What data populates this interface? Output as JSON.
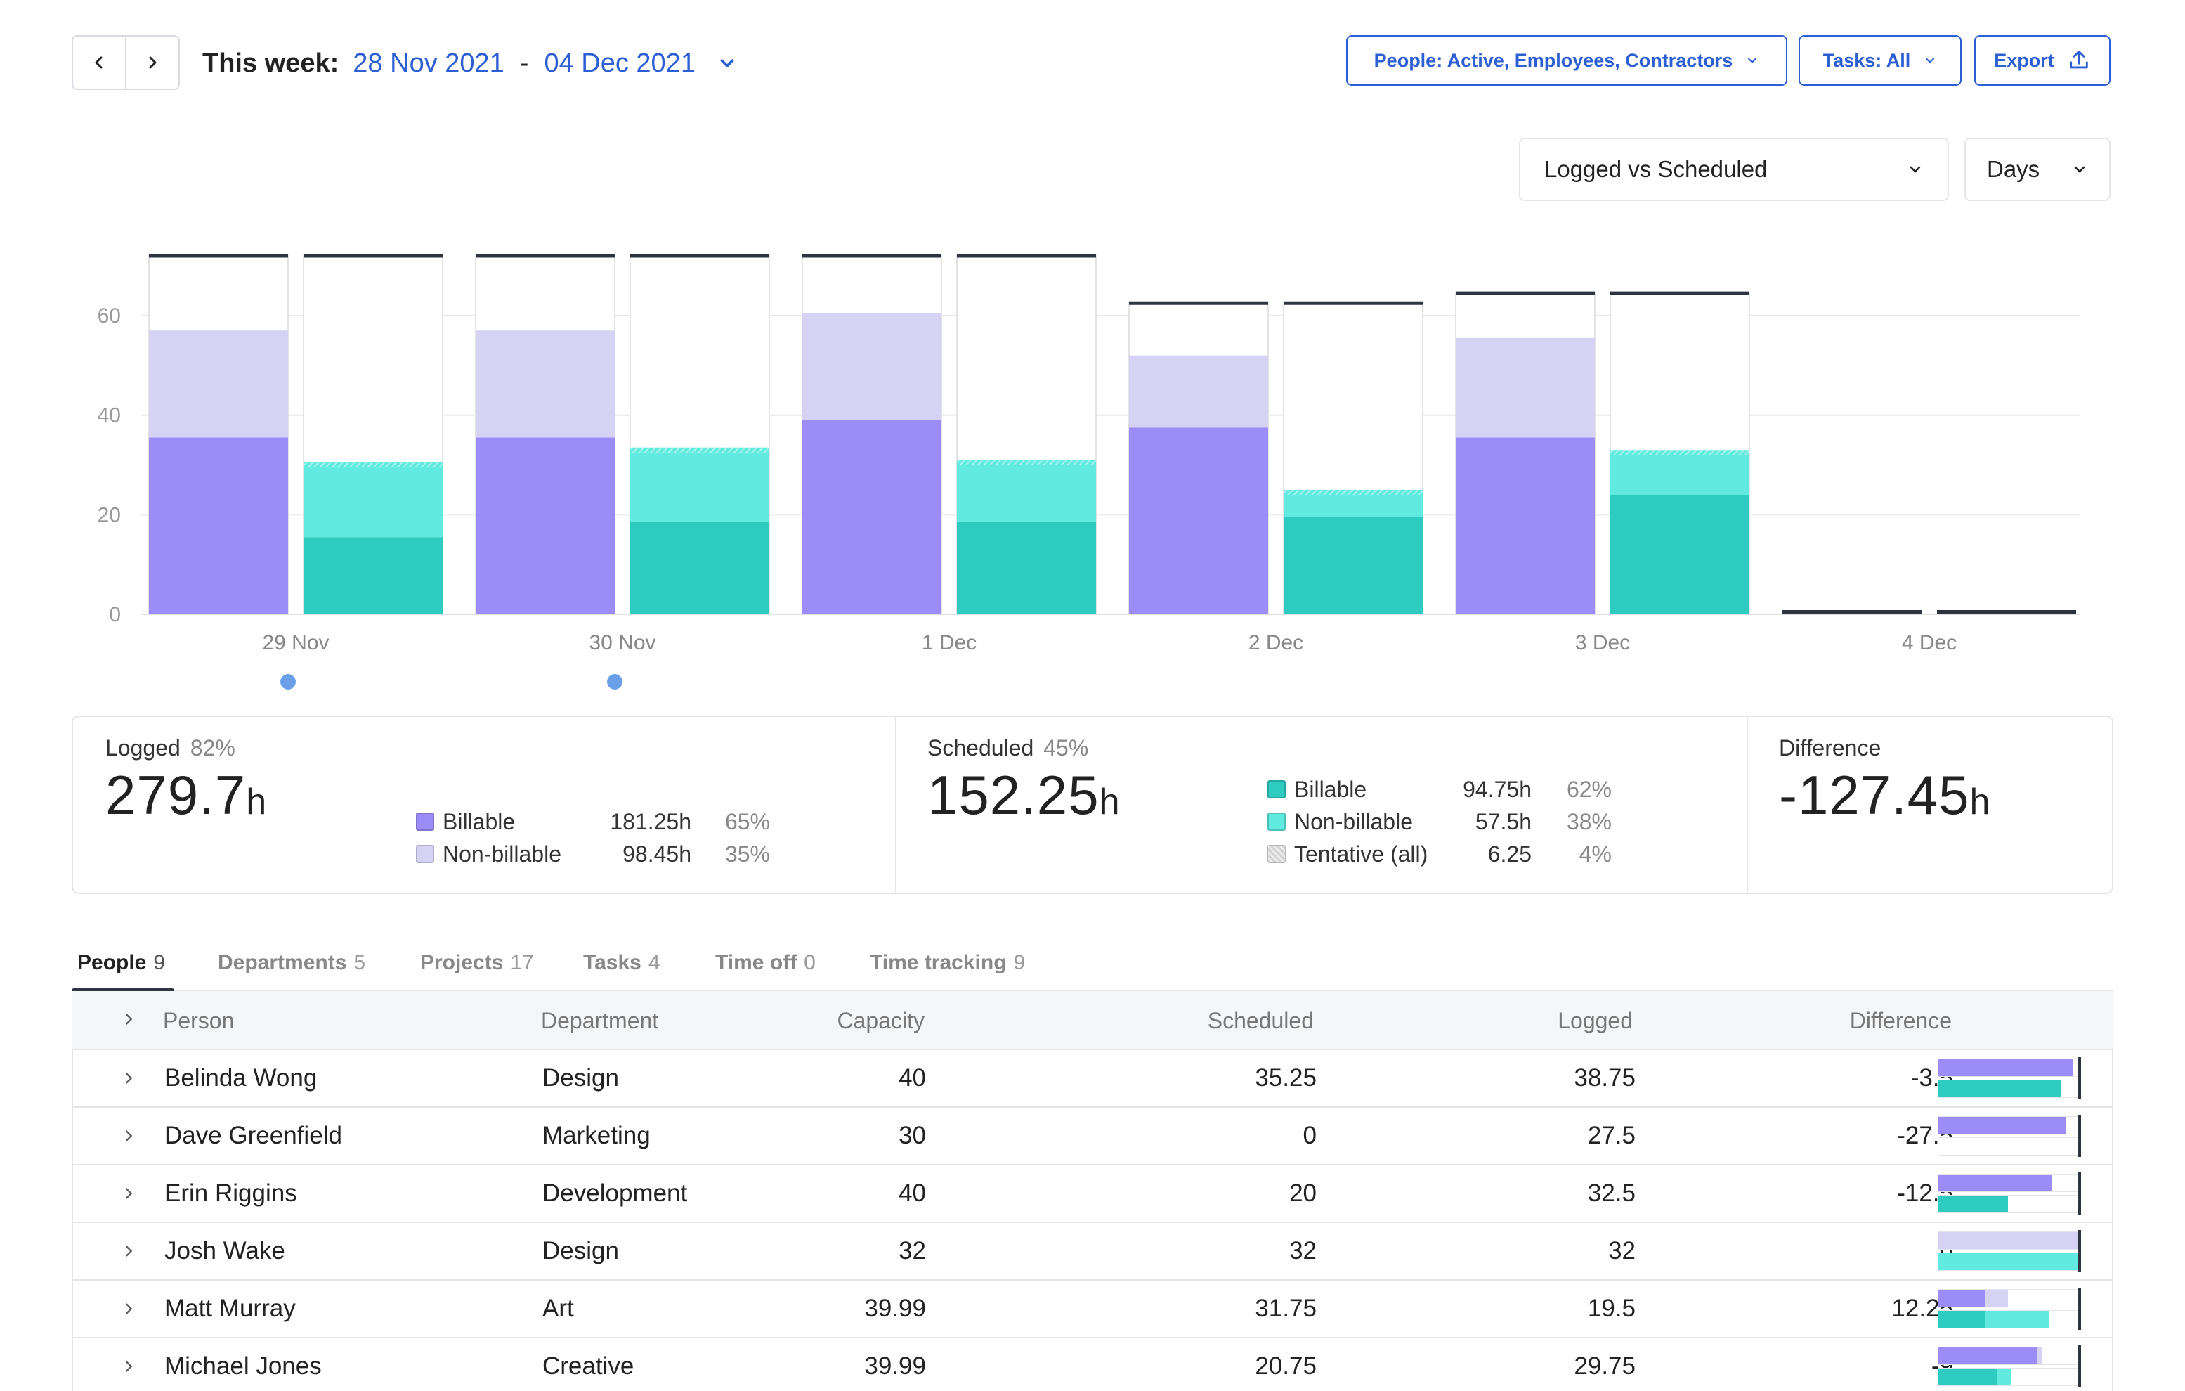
{
  "header": {
    "week_label": "This week:",
    "start_date": "28 Nov 2021",
    "date_separator": "-",
    "end_date": "04 Dec 2021",
    "filters": {
      "people": "People: Active, Employees, Contractors",
      "tasks": "Tasks: All",
      "export": "Export"
    }
  },
  "view": {
    "mode": "Logged vs Scheduled",
    "granularity": "Days"
  },
  "colors": {
    "billable_logged": "#9b8cf8",
    "nonbillable_logged": "#d6d2f4",
    "billable_scheduled": "#2ecbc1",
    "nonbillable_scheduled": "#61ebe0",
    "capacity_line": "#2f3540",
    "accent": "#2b5fd3",
    "dot": "#6b9fe8"
  },
  "chart_data": {
    "type": "bar",
    "ylim": [
      0,
      72
    ],
    "yticks": [
      0,
      20,
      40,
      60
    ],
    "grid": true,
    "categories": [
      "29 Nov",
      "30 Nov",
      "1 Dec",
      "2 Dec",
      "3 Dec",
      "4 Dec"
    ],
    "capacity": [
      72,
      72,
      72,
      62.5,
      64.5,
      0.5
    ],
    "logged_billable": [
      35.5,
      35.5,
      39,
      37.5,
      35.5,
      0
    ],
    "logged_nonbillable": [
      21.5,
      21.5,
      21.5,
      14.5,
      20,
      0
    ],
    "scheduled_billable": [
      15.5,
      18.5,
      18.5,
      19.5,
      24,
      0
    ],
    "scheduled_nonbillable": [
      14,
      14,
      11.5,
      4.5,
      8,
      0
    ],
    "scheduled_tentative": [
      1,
      1,
      1,
      1,
      1,
      0
    ],
    "markers": [
      true,
      true,
      false,
      false,
      false,
      false
    ]
  },
  "summary": {
    "logged": {
      "label": "Logged",
      "pct": "82%",
      "value": "279.7",
      "unit": "h",
      "rows": [
        {
          "name": "Billable",
          "value": "181.25h",
          "pct": "65%"
        },
        {
          "name": "Non-billable",
          "value": "98.45h",
          "pct": "35%"
        }
      ]
    },
    "scheduled": {
      "label": "Scheduled",
      "pct": "45%",
      "value": "152.25",
      "unit": "h",
      "rows": [
        {
          "name": "Billable",
          "value": "94.75h",
          "pct": "62%"
        },
        {
          "name": "Non-billable",
          "value": "57.5h",
          "pct": "38%"
        },
        {
          "name": "Tentative (all)",
          "value": "6.25",
          "pct": "4%"
        }
      ]
    },
    "difference": {
      "label": "Difference",
      "value": "-127.45",
      "unit": "h"
    }
  },
  "tabs": [
    {
      "label": "People",
      "count": "9"
    },
    {
      "label": "Departments",
      "count": "5"
    },
    {
      "label": "Projects",
      "count": "17"
    },
    {
      "label": "Tasks",
      "count": "4"
    },
    {
      "label": "Time off",
      "count": "0"
    },
    {
      "label": "Time tracking",
      "count": "9"
    }
  ],
  "table": {
    "headers": [
      "Person",
      "Department",
      "Capacity",
      "Scheduled",
      "Logged",
      "Difference"
    ],
    "rows": [
      {
        "person": "Belinda Wong",
        "department": "Design",
        "capacity": "40",
        "scheduled": "35.25",
        "logged": "38.75",
        "difference": "-3.5",
        "bar": {
          "logged_billable": 0.97,
          "logged_nonbillable": 0,
          "scheduled_billable": 0.88,
          "scheduled_nonbillable": 0
        }
      },
      {
        "person": "Dave Greenfield",
        "department": "Marketing",
        "capacity": "30",
        "scheduled": "0",
        "logged": "27.5",
        "difference": "-27.5",
        "bar": {
          "logged_billable": 0.92,
          "logged_nonbillable": 0,
          "scheduled_billable": 0,
          "scheduled_nonbillable": 0
        }
      },
      {
        "person": "Erin Riggins",
        "department": "Development",
        "capacity": "40",
        "scheduled": "20",
        "logged": "32.5",
        "difference": "-12.5",
        "bar": {
          "logged_billable": 0.82,
          "logged_nonbillable": 0,
          "scheduled_billable": 0.5,
          "scheduled_nonbillable": 0
        }
      },
      {
        "person": "Josh Wake",
        "department": "Design",
        "capacity": "32",
        "scheduled": "32",
        "logged": "32",
        "difference": "0",
        "bar": {
          "logged_billable": 0,
          "logged_nonbillable": 1.0,
          "scheduled_billable": 0,
          "scheduled_nonbillable": 1.0
        }
      },
      {
        "person": "Matt Murray",
        "department": "Art",
        "capacity": "39.99",
        "scheduled": "31.75",
        "logged": "19.5",
        "difference": "12.25",
        "bar": {
          "logged_billable": 0.34,
          "logged_nonbillable": 0.16,
          "scheduled_billable": 0.34,
          "scheduled_nonbillable": 0.46
        }
      },
      {
        "person": "Michael Jones",
        "department": "Creative",
        "capacity": "39.99",
        "scheduled": "20.75",
        "logged": "29.75",
        "difference": "-9",
        "bar": {
          "logged_billable": 0.71,
          "logged_nonbillable": 0.03,
          "scheduled_billable": 0.42,
          "scheduled_nonbillable": 0.1
        }
      }
    ]
  }
}
